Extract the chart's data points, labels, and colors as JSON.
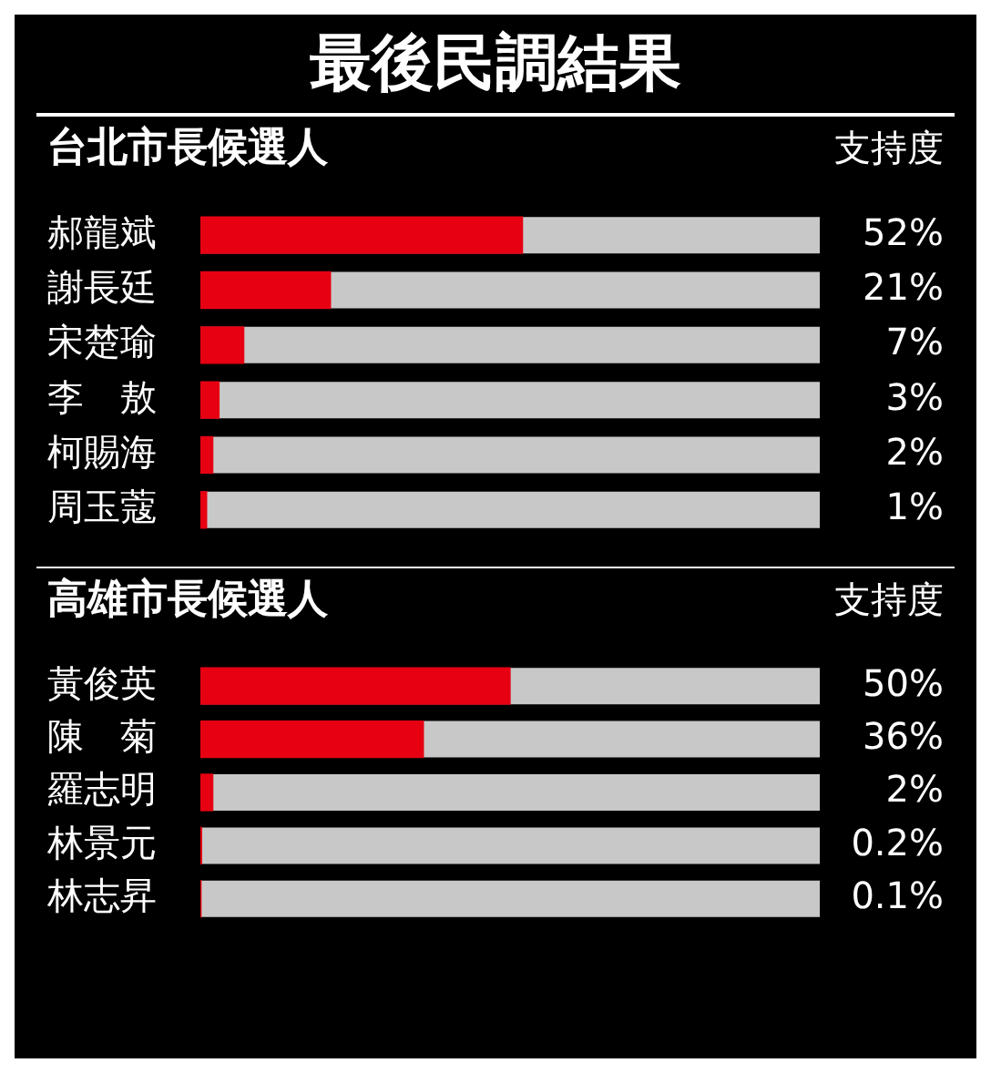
{
  "chart_data": [
    {
      "type": "bar",
      "orientation": "horizontal",
      "title": "最後民調結果",
      "subtitle": "台北市長候選人",
      "xlabel": "支持度",
      "categories": [
        "郝龍斌",
        "謝長廷",
        "宋楚瑜",
        "李　敖",
        "柯賜海",
        "周玉蔻"
      ],
      "values": [
        52,
        21,
        7,
        3,
        2,
        1
      ],
      "value_labels": [
        "52%",
        "21%",
        "7%",
        "3%",
        "2%",
        "1%"
      ],
      "color": "#e60012",
      "xlim": [
        0,
        100
      ],
      "tick_labels": "y"
    },
    {
      "type": "bar",
      "orientation": "horizontal",
      "subtitle": "高雄市長候選人",
      "xlabel": "支持度",
      "categories": [
        "黃俊英",
        "陳　菊",
        "羅志明",
        "林景元",
        "林志昇"
      ],
      "values": [
        50,
        36,
        2,
        0.2,
        0.1
      ],
      "value_labels": [
        "50%",
        "36%",
        "2%",
        "0.2%",
        "0.1%"
      ],
      "color": "#e60012",
      "xlim": [
        0,
        100
      ],
      "tick_labels": "y"
    }
  ]
}
